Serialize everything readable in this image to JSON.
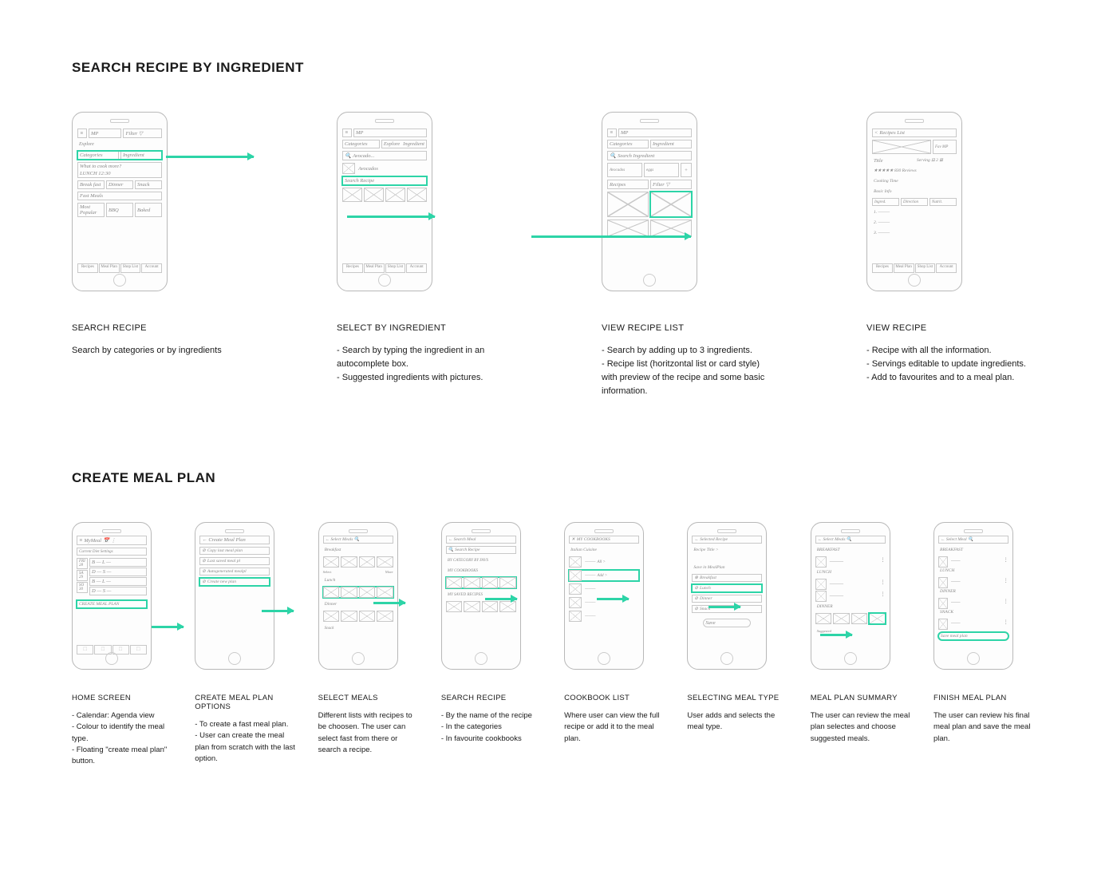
{
  "colors": {
    "highlight": "#2dd4a7",
    "phone_stroke": "#b8b8b8",
    "sketch_stroke": "#c8c8c8",
    "text": "#1a1a1a",
    "background": "#ffffff"
  },
  "section1": {
    "title": "SEARCH RECIPE BY INGREDIENT",
    "steps": [
      {
        "caption_title": "SEARCH RECIPE",
        "caption_body": "Search by categories or by ingredients"
      },
      {
        "caption_title": "SELECT BY INGREDIENT",
        "caption_body": "- Search by typing the ingredient in an autocomplete box.\n- Suggested ingredients with pictures."
      },
      {
        "caption_title": "VIEW RECIPE LIST",
        "caption_body": "- Search by adding up to 3 ingredients.\n- Recipe list (horitzontal list or card style) with preview of the recipe and some basic information."
      },
      {
        "caption_title": "VIEW RECIPE",
        "caption_body": "- Recipe with all the information.\n- Servings editable to update ingredients.\n- Add to favourites and to a meal plan."
      }
    ],
    "sketch_labels": {
      "app": "MP",
      "filter": "Filter ▽",
      "explore": "Explore",
      "categories": "Categories",
      "ingredient": "Ingredient",
      "what_cook": "What to cook more?",
      "lunch": "LUNCH 12:30",
      "breakfast": "Break fast",
      "dinner": "Dinner",
      "snack": "Snack",
      "fast_meals": "Fast Meals",
      "most_popular": "Most Popular",
      "bbq": "BBQ",
      "baked": "Baked",
      "avocado": "Avocado...",
      "avocados": "Avocados",
      "search_recipe": "Search Recipe",
      "search_ingredient": "Search Ingredient",
      "eggs": "eggs",
      "recipes": "Recipes",
      "recipes_list": "Recipes List",
      "title": "Title",
      "serving": "Serving ⊟ 2 ⊞",
      "reviews": "★★★★★ 830 Reviews",
      "cooking_time": "Cooking Time",
      "basic_info": "Basic Info",
      "ingred": "Ingred.",
      "direction": "Direction",
      "nutrit": "Nutrit.",
      "nav": [
        "Recipes",
        "Meal Plan",
        "Shop List",
        "Account"
      ]
    }
  },
  "section2": {
    "title": "CREATE MEAL PLAN",
    "steps": [
      {
        "caption_title": "HOME SCREEN",
        "caption_body": "- Calendar: Agenda view\n- Colour to identify the meal type.\n- Floating \"create meal plan\" button."
      },
      {
        "caption_title": "CREATE MEAL PLAN OPTIONS",
        "caption_body": "- To create a fast meal plan.\n- User can create the meal plan from scratch with the last option."
      },
      {
        "caption_title": "SELECT MEALS",
        "caption_body": "Different lists with recipes to be choosen. The user can select fast from there or search a recipe."
      },
      {
        "caption_title": "SEARCH RECIPE",
        "caption_body": "- By the name of the recipe\n- In the categories\n- In favourite cookbooks"
      },
      {
        "caption_title": "COOKBOOK LIST",
        "caption_body": "Where user can view the full recipe or add it to the meal plan."
      },
      {
        "caption_title": "SELECTING MEAL TYPE",
        "caption_body": "User adds and selects the meal type."
      },
      {
        "caption_title": "MEAL PLAN SUMMARY",
        "caption_body": "The user can review the meal plan selectes and choose suggested meals."
      },
      {
        "caption_title": "FINISH MEAL PLAN",
        "caption_body": "The user can review his final meal plan and save the meal plan."
      }
    ],
    "sketch_labels": {
      "my_meal": "MyMeal",
      "current_diet": "Current Diet Settings",
      "create_meal_plan_btn": "CREATE MEAL PLAN",
      "create_meal_plan": "← Create Meal Plan",
      "copy_last": "Copy last meal plan",
      "last_saved": "Last saved meal pl",
      "autogen": "Autogenerated mealpl",
      "create_new": "Create new plan",
      "select_meals": "← Select Meals   🔍",
      "breakfast": "Breakfast",
      "lunch": "Lunch",
      "dinner": "Dinner",
      "snack": "Snack",
      "select": "Select",
      "more": "More",
      "suggest": "Suggested",
      "search_meal": "← Search Meal",
      "search_recipe": "🔍 Search Recipe",
      "by_category": "BY CATEGORY  BY FAVS",
      "my_cookbooks": "MY COOKBOOKS",
      "my_saved": "MY SAVED RECIPES",
      "italian": "Italian Cuisine",
      "all": "All >",
      "add": "Add >",
      "selected_recipe": "← Selected Recipe",
      "recipe_title": "Recipe Title  >",
      "save_in": "Save in MealPlan",
      "save": "Save",
      "select_meal": "← Select Meal  🔍",
      "save_meal_plan": "Save meal plan",
      "breakfast_u": "BREAKFAST",
      "lunch_u": "LUNCH",
      "dinner_u": "DINNER",
      "snack_u": "SNACK"
    }
  }
}
